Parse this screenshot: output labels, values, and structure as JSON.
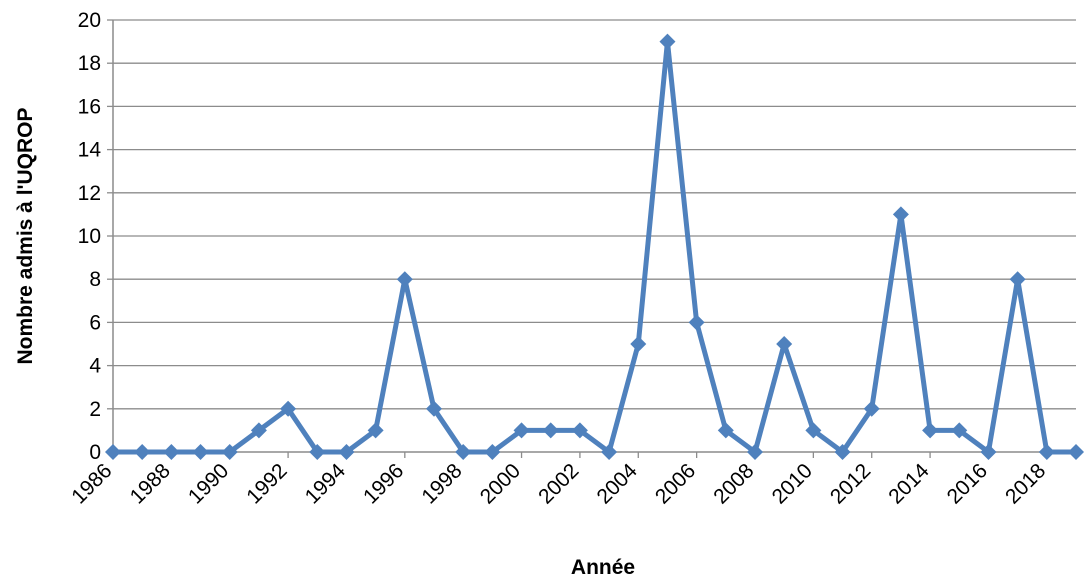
{
  "chart_data": {
    "type": "line",
    "title": "",
    "xlabel": "Année",
    "ylabel": "Nombre admis à l'UQROP",
    "x": [
      1986,
      1987,
      1988,
      1989,
      1990,
      1991,
      1992,
      1993,
      1994,
      1995,
      1996,
      1997,
      1998,
      1999,
      2000,
      2001,
      2002,
      2003,
      2004,
      2005,
      2006,
      2007,
      2008,
      2009,
      2010,
      2011,
      2012,
      2013,
      2014,
      2015,
      2016,
      2017,
      2018,
      2019
    ],
    "series": [
      {
        "values": [
          0,
          0,
          0,
          0,
          0,
          1,
          2,
          0,
          0,
          1,
          8,
          2,
          0,
          0,
          1,
          1,
          1,
          0,
          5,
          19,
          6,
          1,
          0,
          5,
          1,
          0,
          2,
          11,
          1,
          1,
          0,
          8,
          0,
          0
        ]
      }
    ],
    "x_tick_labels": [
      "1986",
      "1988",
      "1990",
      "1992",
      "1994",
      "1996",
      "1998",
      "2000",
      "2002",
      "2004",
      "2006",
      "2008",
      "2010",
      "2012",
      "2014",
      "2016",
      "2018"
    ],
    "y_tick_labels": [
      "0",
      "2",
      "4",
      "6",
      "8",
      "10",
      "12",
      "14",
      "16",
      "18",
      "20"
    ],
    "ylim": [
      0,
      20
    ],
    "xlim": [
      1986,
      2019
    ],
    "grid": "horizontal",
    "legend": "none",
    "colors": {
      "line": "#4f81bd",
      "grid": "#8c8c8c",
      "axis": "#8c8c8c"
    }
  }
}
